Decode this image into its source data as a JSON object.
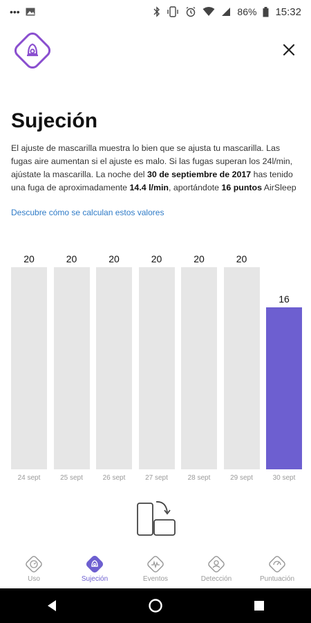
{
  "status_bar": {
    "battery": "86%",
    "time": "15:32",
    "icons": [
      "more-dots-icon",
      "image-icon",
      "bluetooth-icon",
      "vibrate-icon",
      "alarm-icon",
      "wifi-icon",
      "signal-icon",
      "battery-icon"
    ]
  },
  "header": {
    "logo_icon": "airsense-logo-icon",
    "close_icon": "close-icon"
  },
  "page": {
    "title": "Sujeción",
    "description": {
      "part1": "El ajuste de mascarilla muestra lo bien que se ajusta tu mascarilla. Las fugas aire aumentan si el ajuste es malo. Si las fugas superan los 24l/min, ajústate la mascarilla. La noche del ",
      "date": "30 de septiembre de 2017",
      "part2": " has tenido una fuga de aproximadamente ",
      "leak": "14.4 l/min",
      "part3": ", aportándote ",
      "points": "16 puntos",
      "part4": " AirSleep"
    },
    "link": "Descubre cómo se calculan estos valores"
  },
  "chart_data": {
    "type": "bar",
    "categories": [
      "24 sept",
      "25 sept",
      "26 sept",
      "27 sept",
      "28 sept",
      "29 sept",
      "30 sept"
    ],
    "values": [
      20,
      20,
      20,
      20,
      20,
      20,
      16
    ],
    "ylim": [
      0,
      20
    ],
    "highlight_index": 6,
    "colors": {
      "default": "#e6e6e6",
      "highlight": "#6d5fd0"
    },
    "grid": false
  },
  "rotate_icon": "rotate-screen-icon",
  "tabs": [
    {
      "label": "Uso",
      "icon": "usage-icon",
      "active": false
    },
    {
      "label": "Sujeción",
      "icon": "mask-seal-icon",
      "active": true
    },
    {
      "label": "Eventos",
      "icon": "events-icon",
      "active": false
    },
    {
      "label": "Detección",
      "icon": "detection-icon",
      "active": false
    },
    {
      "label": "Puntuación",
      "icon": "score-icon",
      "active": false
    }
  ],
  "colors": {
    "accent": "#6d5fd0",
    "link": "#2f7bc7",
    "inactive": "#9a9a9a"
  }
}
